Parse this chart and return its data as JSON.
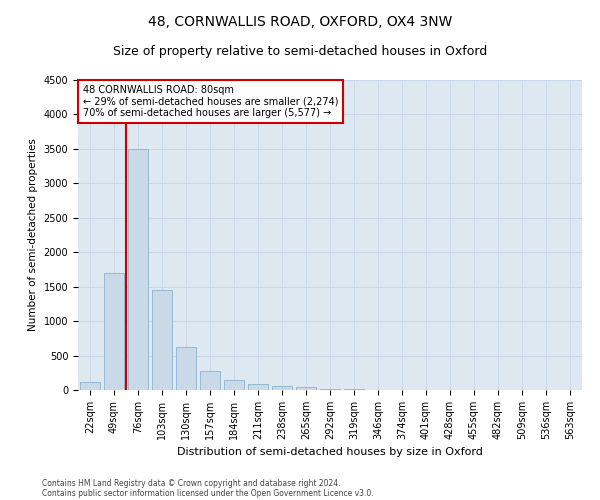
{
  "title": "48, CORNWALLIS ROAD, OXFORD, OX4 3NW",
  "subtitle": "Size of property relative to semi-detached houses in Oxford",
  "xlabel": "Distribution of semi-detached houses by size in Oxford",
  "ylabel": "Number of semi-detached properties",
  "categories": [
    "22sqm",
    "49sqm",
    "76sqm",
    "103sqm",
    "130sqm",
    "157sqm",
    "184sqm",
    "211sqm",
    "238sqm",
    "265sqm",
    "292sqm",
    "319sqm",
    "346sqm",
    "374sqm",
    "401sqm",
    "428sqm",
    "455sqm",
    "482sqm",
    "509sqm",
    "536sqm",
    "563sqm"
  ],
  "values": [
    110,
    1700,
    3500,
    1450,
    620,
    270,
    150,
    90,
    65,
    40,
    20,
    10,
    5,
    5,
    3,
    2,
    2,
    1,
    1,
    1,
    1
  ],
  "bar_color": "#c9d9e8",
  "bar_edge_color": "#8ab4d0",
  "vline_color": "#cc0000",
  "annotation_box_text": "48 CORNWALLIS ROAD: 80sqm\n← 29% of semi-detached houses are smaller (2,274)\n70% of semi-detached houses are larger (5,577) →",
  "annotation_box_color": "#cc0000",
  "ylim": [
    0,
    4500
  ],
  "yticks": [
    0,
    500,
    1000,
    1500,
    2000,
    2500,
    3000,
    3500,
    4000,
    4500
  ],
  "grid_color": "#c8d8e8",
  "background_color": "#dde8f0",
  "footnote1": "Contains HM Land Registry data © Crown copyright and database right 2024.",
  "footnote2": "Contains public sector information licensed under the Open Government Licence v3.0.",
  "title_fontsize": 10,
  "subtitle_fontsize": 9,
  "xlabel_fontsize": 8,
  "ylabel_fontsize": 7.5,
  "tick_fontsize": 7,
  "annot_fontsize": 7,
  "footnote_fontsize": 5.5
}
